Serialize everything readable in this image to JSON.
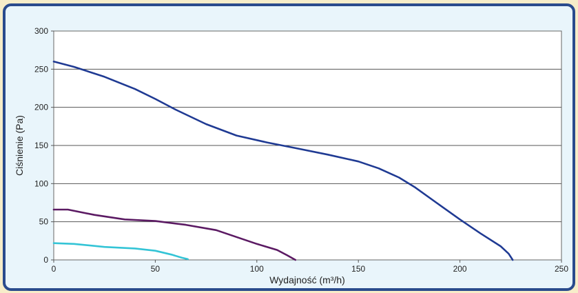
{
  "chart_data": {
    "type": "line",
    "title": "",
    "xlabel": "Wydajność (m³/h)",
    "ylabel": "Ciśnienie (Pa)",
    "xlim": [
      0,
      250
    ],
    "ylim": [
      0,
      300
    ],
    "xticks": [
      "0",
      "50",
      "100",
      "150",
      "200",
      "250"
    ],
    "yticks": [
      "0",
      "50",
      "100",
      "150",
      "200",
      "250",
      "300"
    ],
    "grid": "horizontal",
    "legend": "none",
    "series": [
      {
        "color": "#1f3a93",
        "x": [
          0,
          10,
          25,
          40,
          50,
          60,
          75,
          90,
          105,
          120,
          135,
          150,
          160,
          170,
          178,
          190,
          200,
          210,
          220,
          224,
          226
        ],
        "y": [
          260,
          253,
          240,
          224,
          211,
          197,
          178,
          163,
          154,
          146,
          138,
          129,
          120,
          108,
          95,
          72,
          53,
          35,
          18,
          8,
          0
        ]
      },
      {
        "color": "#5b1a63",
        "x": [
          0,
          7,
          20,
          35,
          50,
          65,
          80,
          90,
          100,
          110,
          115,
          119
        ],
        "y": [
          66,
          66,
          59,
          53,
          51,
          46,
          39,
          30,
          21,
          13,
          6,
          0
        ]
      },
      {
        "color": "#33c4d6",
        "x": [
          0,
          10,
          25,
          40,
          50,
          58,
          63,
          66
        ],
        "y": [
          22,
          21,
          17,
          15,
          12,
          7,
          3,
          1
        ]
      }
    ]
  }
}
